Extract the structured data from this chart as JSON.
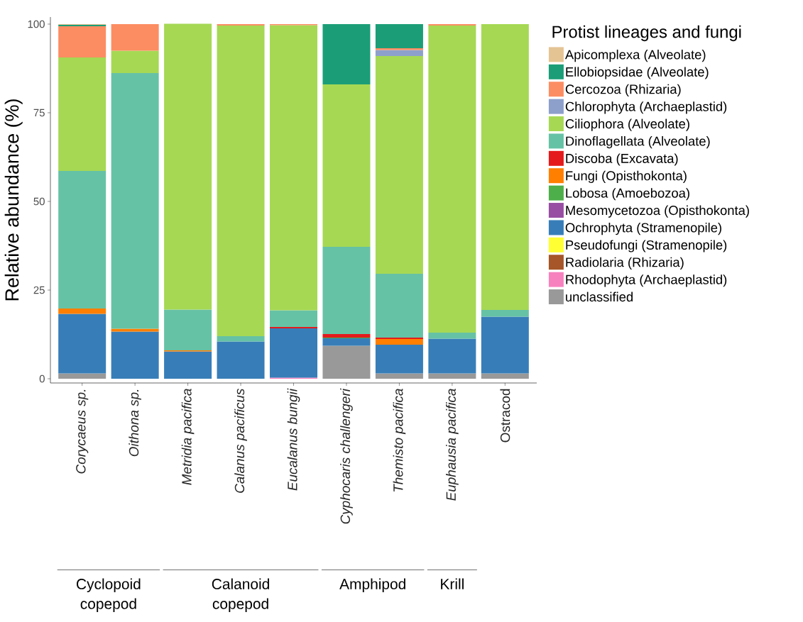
{
  "chart_data": {
    "type": "bar",
    "stacked": true,
    "ylabel": "Relative abundance (%)",
    "legend_title": "Protist lineages and fungi",
    "legend": "right",
    "categories": [
      "*Corycaeus sp.*",
      "*Oithona sp.*",
      "*Metridia pacifica*",
      "*Calanus pacificus*",
      "*Eucalanus bungii*",
      "*Cyphocaris challengeri*",
      "*Themisto pacifica*",
      "*Euphausia pacifica*",
      "Ostracod"
    ],
    "ylim": [
      -1.2,
      102
    ],
    "yticks": [
      0,
      25,
      50,
      75,
      100
    ],
    "series": [
      {
        "name": "unclassified",
        "color": "#999999",
        "values": [
          1.5,
          0,
          0,
          0,
          0,
          9.3,
          1.5,
          1.5,
          1.5
        ]
      },
      {
        "name": "Rhodophyta (Archaeplastid)",
        "color": "#f781bf",
        "values": [
          0,
          0,
          0,
          0,
          0.3,
          0,
          0,
          0,
          0
        ]
      },
      {
        "name": "Radiolaria (Rhizaria)",
        "color": "#a65628",
        "values": [
          0,
          0,
          0,
          0,
          0,
          0,
          0,
          0,
          0
        ]
      },
      {
        "name": "Pseudofungi (Stramenopile)",
        "color": "#ffff33",
        "values": [
          0,
          0,
          0,
          0,
          0,
          0,
          0,
          0,
          0
        ]
      },
      {
        "name": "Ochrophyta (Stramenopile)",
        "color": "#377eb8",
        "values": [
          16.8,
          13.3,
          7.7,
          10.5,
          13.9,
          2.1,
          8.1,
          9.8,
          16.0
        ]
      },
      {
        "name": "Mesomycetozoa (Opisthokonta)",
        "color": "#984ea3",
        "values": [
          0,
          0,
          0,
          0,
          0,
          0,
          0,
          0,
          0
        ]
      },
      {
        "name": "Lobosa (Amoebozoa)",
        "color": "#4daf4a",
        "values": [
          0,
          0,
          0,
          0,
          0,
          0.2,
          0,
          0,
          0
        ]
      },
      {
        "name": "Fungi (Opisthokonta)",
        "color": "#ff7f00",
        "values": [
          1.5,
          0.8,
          0.3,
          0,
          0,
          0,
          1.6,
          0,
          0
        ]
      },
      {
        "name": "Discoba (Excavata)",
        "color": "#e41a1c",
        "values": [
          0,
          0,
          0,
          0,
          0.4,
          1.0,
          0.4,
          0,
          0
        ]
      },
      {
        "name": "Dinoflagellata (Alveolate)",
        "color": "#66c2a5",
        "values": [
          38.8,
          72.1,
          11.5,
          1.5,
          4.7,
          24.6,
          18.0,
          1.7,
          1.9
        ]
      },
      {
        "name": "Ciliophora (Alveolate)",
        "color": "#a6d854",
        "values": [
          32.0,
          6.3,
          80.6,
          87.6,
          80.4,
          45.8,
          61.4,
          86.6,
          80.6
        ]
      },
      {
        "name": "Chlorophyta (Archaeplastid)",
        "color": "#8da0cb",
        "values": [
          0,
          0,
          0,
          0,
          0,
          0,
          1.7,
          0,
          0
        ]
      },
      {
        "name": "Cercozoa (Rhizaria)",
        "color": "#fc8d62",
        "values": [
          8.8,
          7.5,
          0,
          0.4,
          0.3,
          0,
          0.5,
          0.4,
          0
        ]
      },
      {
        "name": "Ellobiopsidae (Alveolate)",
        "color": "#1b9e77",
        "values": [
          0.4,
          0,
          0,
          0,
          0,
          17.0,
          6.8,
          0,
          0
        ]
      },
      {
        "name": "Apicomplexa (Alveolate)",
        "color": "#e5c494",
        "values": [
          0.2,
          0,
          0,
          0,
          0,
          0,
          0,
          0,
          0
        ]
      }
    ],
    "annotations": [
      "Cyclopoid copepod",
      "Calanoid copepod",
      "Amphipod",
      "Krill"
    ]
  }
}
